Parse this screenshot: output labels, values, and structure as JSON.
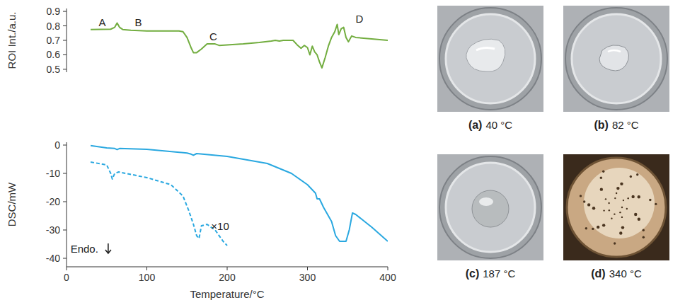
{
  "chart_data": [
    {
      "type": "line",
      "ylabel": "ROI Int./a.u.",
      "xlim": [
        0,
        400
      ],
      "ylim": [
        0.48,
        0.92
      ],
      "yticks": [
        0.5,
        0.6,
        0.7,
        0.8,
        0.9
      ],
      "tick_labels": "y",
      "grid": false,
      "series": [
        {
          "name": "ROI",
          "color": "#72ad3f",
          "line_style": "solid",
          "x": [
            30,
            55,
            60,
            63,
            66,
            70,
            80,
            100,
            140,
            145,
            150,
            155,
            158,
            162,
            168,
            175,
            185,
            190,
            200,
            220,
            240,
            255,
            260,
            265,
            270,
            282,
            287,
            292,
            296,
            300,
            303,
            306,
            309,
            312,
            315,
            318,
            322,
            326,
            330,
            334,
            337,
            339,
            342,
            345,
            348,
            351,
            355,
            360,
            380,
            400
          ],
          "values": [
            0.775,
            0.777,
            0.79,
            0.82,
            0.79,
            0.775,
            0.77,
            0.765,
            0.765,
            0.76,
            0.72,
            0.65,
            0.615,
            0.615,
            0.64,
            0.675,
            0.675,
            0.665,
            0.668,
            0.675,
            0.685,
            0.695,
            0.7,
            0.695,
            0.7,
            0.7,
            0.67,
            0.645,
            0.665,
            0.65,
            0.6,
            0.66,
            0.62,
            0.6,
            0.55,
            0.51,
            0.58,
            0.66,
            0.72,
            0.76,
            0.81,
            0.74,
            0.78,
            0.79,
            0.72,
            0.69,
            0.73,
            0.72,
            0.71,
            0.7
          ]
        }
      ],
      "annotations": [
        {
          "text": "A",
          "x": 40,
          "y": 0.8
        },
        {
          "text": "B",
          "x": 85,
          "y": 0.8
        },
        {
          "text": "C",
          "x": 178,
          "y": 0.7
        },
        {
          "text": "D",
          "x": 360,
          "y": 0.82
        }
      ]
    },
    {
      "type": "line",
      "xlabel": "Temperature/°C",
      "ylabel": "DSC/mW",
      "xlim": [
        0,
        400
      ],
      "ylim": [
        -43,
        1
      ],
      "xticks": [
        0,
        100,
        200,
        300,
        400
      ],
      "yticks": [
        0,
        -10,
        -20,
        -30,
        -40
      ],
      "grid": false,
      "series": [
        {
          "name": "DSC",
          "color": "#2aa8e0",
          "line_style": "solid",
          "x": [
            30,
            50,
            60,
            63,
            66,
            100,
            150,
            155,
            158,
            162,
            200,
            250,
            280,
            300,
            310,
            312,
            315,
            320,
            330,
            335,
            340,
            348,
            352,
            356,
            360,
            380,
            400
          ],
          "values": [
            -0.2,
            -1,
            -1.2,
            -1.6,
            -1.2,
            -1.5,
            -2.8,
            -3.2,
            -3.6,
            -3,
            -4,
            -6.5,
            -10,
            -14,
            -17,
            -19,
            -19,
            -22,
            -27,
            -32,
            -34,
            -34,
            -30,
            -24,
            -24.5,
            -29,
            -34
          ]
        },
        {
          "name": "×10",
          "color": "#2aa8e0",
          "line_style": "dashed",
          "x": [
            30,
            50,
            55,
            57,
            60,
            65,
            100,
            130,
            145,
            152,
            158,
            162,
            165,
            168,
            175,
            185,
            195,
            200
          ],
          "values": [
            -6,
            -7,
            -10,
            -12,
            -10,
            -9.5,
            -11.5,
            -14,
            -18,
            -23,
            -28,
            -32,
            -33,
            -28.5,
            -28,
            -30,
            -34,
            -35.5
          ]
        }
      ],
      "annotations": [
        {
          "text": "×10",
          "x": 180,
          "y": -30
        },
        {
          "text": "Endo.",
          "x": 5,
          "y": -38
        }
      ]
    }
  ],
  "photos": [
    {
      "label": "(a)",
      "temperature": "40 °C"
    },
    {
      "label": "(b)",
      "temperature": "82 °C"
    },
    {
      "label": "(c)",
      "temperature": "187 °C"
    },
    {
      "label": "(d)",
      "temperature": "340 °C"
    }
  ]
}
